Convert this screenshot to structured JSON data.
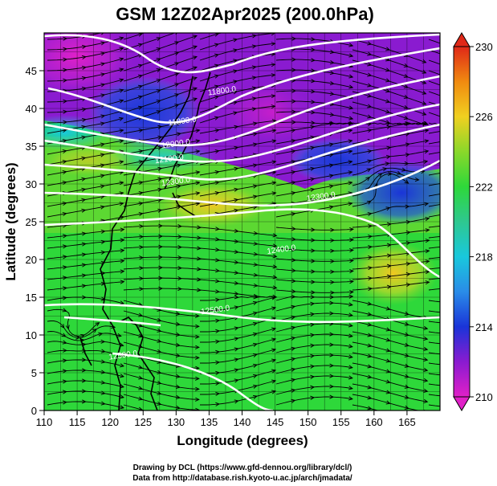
{
  "chart_data": {
    "type": "heatmap",
    "title": "GSM 12Z02Apr2025 (200.0hPa)",
    "xlabel": "Longitude (degrees)",
    "ylabel": "Latitude  (degrees)",
    "xlim": [
      110,
      170
    ],
    "ylim": [
      0,
      50
    ],
    "x_ticks": [
      110,
      115,
      120,
      125,
      130,
      135,
      140,
      145,
      150,
      155,
      160,
      165
    ],
    "y_ticks": [
      0,
      5,
      10,
      15,
      20,
      25,
      30,
      35,
      40,
      45
    ],
    "colorbar": {
      "min": 210,
      "max": 230,
      "tick_labels": [
        "210",
        "214",
        "218",
        "222",
        "226",
        "230"
      ]
    },
    "contour_labels": [
      {
        "text": "11800.0",
        "lon": 137,
        "lat": 42
      },
      {
        "text": "11800.0",
        "lon": 131,
        "lat": 38
      },
      {
        "text": "12000.0",
        "lon": 130,
        "lat": 35
      },
      {
        "text": "12100.0",
        "lon": 129,
        "lat": 33
      },
      {
        "text": "12300.0",
        "lon": 130,
        "lat": 30
      },
      {
        "text": "12300.0",
        "lon": 152,
        "lat": 28
      },
      {
        "text": "12400.0",
        "lon": 146,
        "lat": 21
      },
      {
        "text": "12500.0",
        "lon": 136,
        "lat": 13
      },
      {
        "text": "12500.0",
        "lon": 122,
        "lat": 7
      }
    ],
    "grid": true
  },
  "credits": {
    "line1": "Drawing by DCL (https://www.gfd-dennou.org/library/dcl/)",
    "line2": "Data from http://database.rish.kyoto-u.ac.jp/arch/jmadata/"
  },
  "colors": {
    "magenta": "#e020c8",
    "purple": "#8a1bd0",
    "blue": "#1a34d8",
    "cyan": "#19c8dc",
    "green": "#2ed83a",
    "yellow": "#f0d020",
    "orange": "#f08a10",
    "red": "#e02818"
  }
}
